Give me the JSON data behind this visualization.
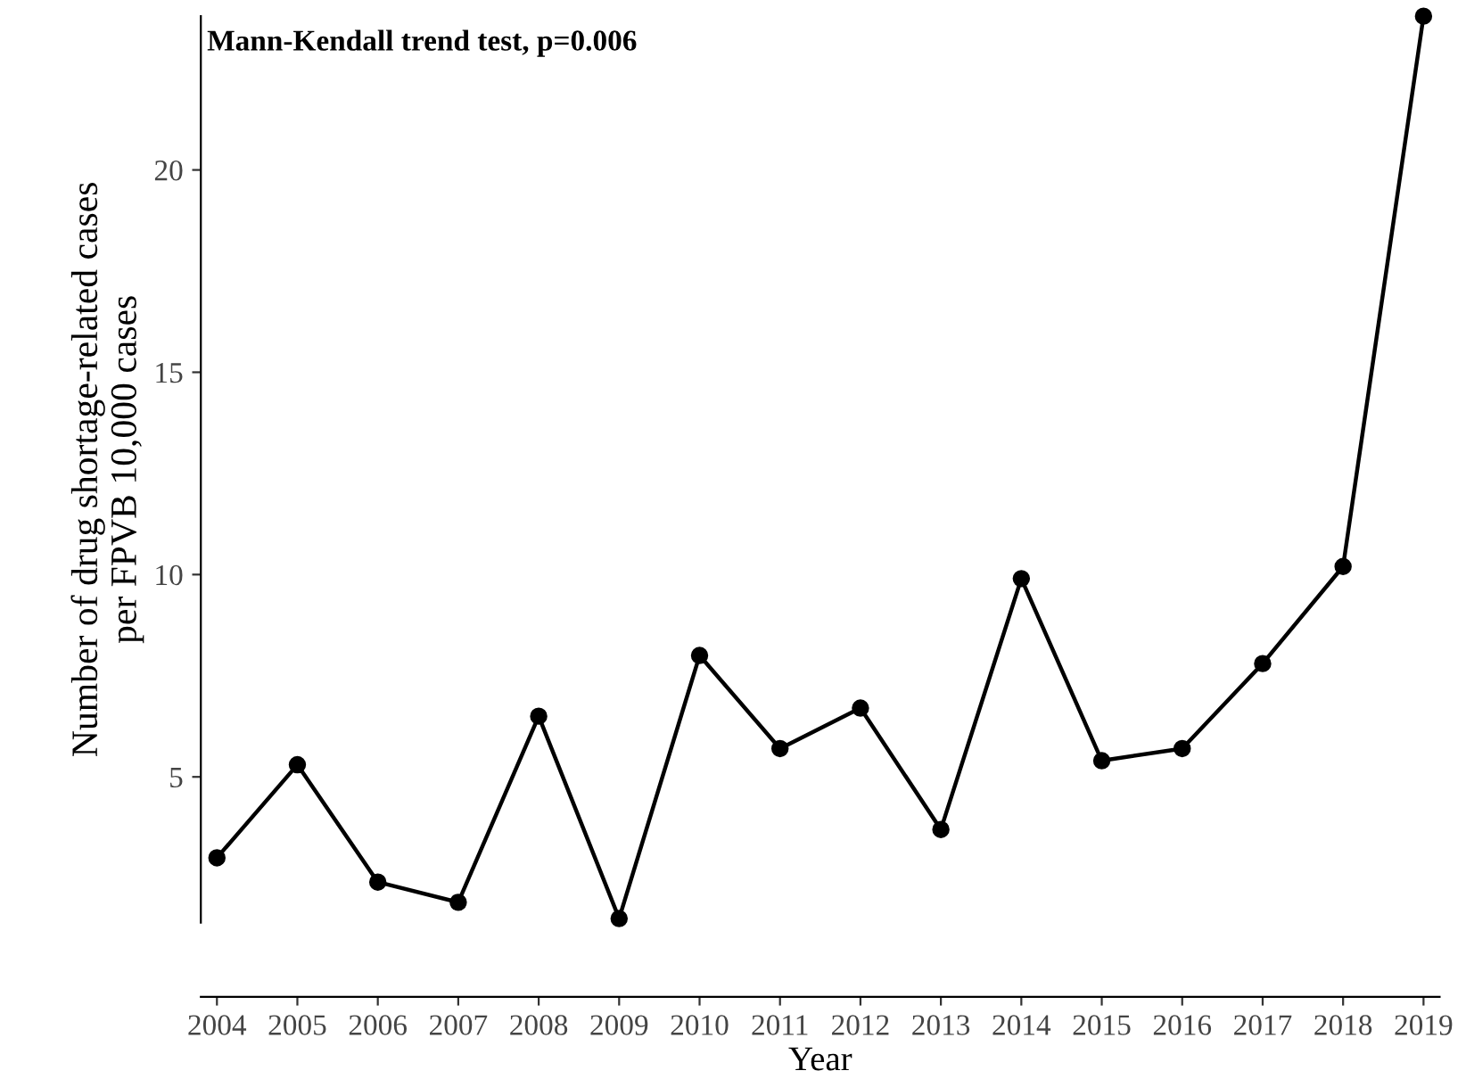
{
  "chart_data": {
    "type": "line",
    "xlabel": "Year",
    "ylabel": "Number of drug shortage-related cases\nper FPVB 10,000 cases",
    "annotations": [
      "Mann-Kendall trend test, p=0.006"
    ],
    "x": [
      2004,
      2005,
      2006,
      2007,
      2008,
      2009,
      2010,
      2011,
      2012,
      2013,
      2014,
      2015,
      2016,
      2017,
      2018,
      2019
    ],
    "series": [
      {
        "color": "#000000",
        "values": [
          3.0,
          5.3,
          2.4,
          1.9,
          6.5,
          1.5,
          8.0,
          5.7,
          6.7,
          3.7,
          9.9,
          5.4,
          5.7,
          7.8,
          10.2,
          23.8
        ]
      }
    ],
    "xlim": [
      2003.8,
      2019.2
    ],
    "xticks": [
      2004,
      2005,
      2006,
      2007,
      2008,
      2009,
      2010,
      2011,
      2012,
      2013,
      2014,
      2015,
      2016,
      2017,
      2018,
      2019
    ],
    "ylim": [
      1.4,
      23.8
    ],
    "yticks": [
      5,
      10,
      15,
      20
    ],
    "marker": "circle",
    "line_style": "solid",
    "grid": false,
    "legend": false
  }
}
